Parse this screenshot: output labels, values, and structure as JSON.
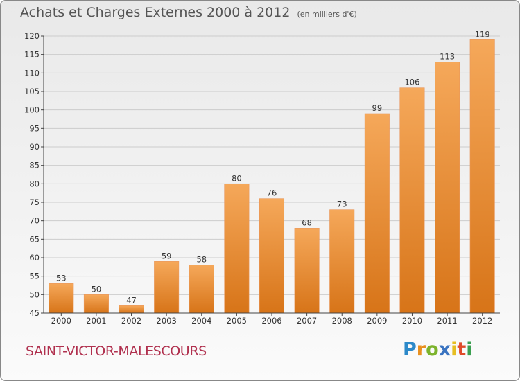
{
  "header": {
    "title": "Achats et Charges Externes 2000 à 2012",
    "unit": "(en milliers d'€)"
  },
  "footer": {
    "place": "SAINT-VICTOR-MALESCOURS",
    "logo": "Proxiti"
  },
  "colors": {
    "bar_top": "#f5a85a",
    "bar_bottom": "#d77418",
    "axis": "#444444",
    "grid": "#cccccc",
    "place": "#b0304e"
  },
  "chart_data": {
    "type": "bar",
    "title": "Achats et Charges Externes 2000 à 2012",
    "subtitle": "(en milliers d'€)",
    "categories": [
      "2000",
      "2001",
      "2002",
      "2003",
      "2004",
      "2005",
      "2006",
      "2007",
      "2008",
      "2009",
      "2010",
      "2011",
      "2012"
    ],
    "values": [
      53,
      50,
      47,
      59,
      58,
      80,
      76,
      68,
      73,
      99,
      106,
      113,
      119
    ],
    "ylim": [
      45,
      120
    ],
    "yticks": [
      45,
      50,
      55,
      60,
      65,
      70,
      75,
      80,
      85,
      90,
      95,
      100,
      105,
      110,
      115,
      120
    ],
    "grid": true,
    "xlabel": "",
    "ylabel": ""
  }
}
